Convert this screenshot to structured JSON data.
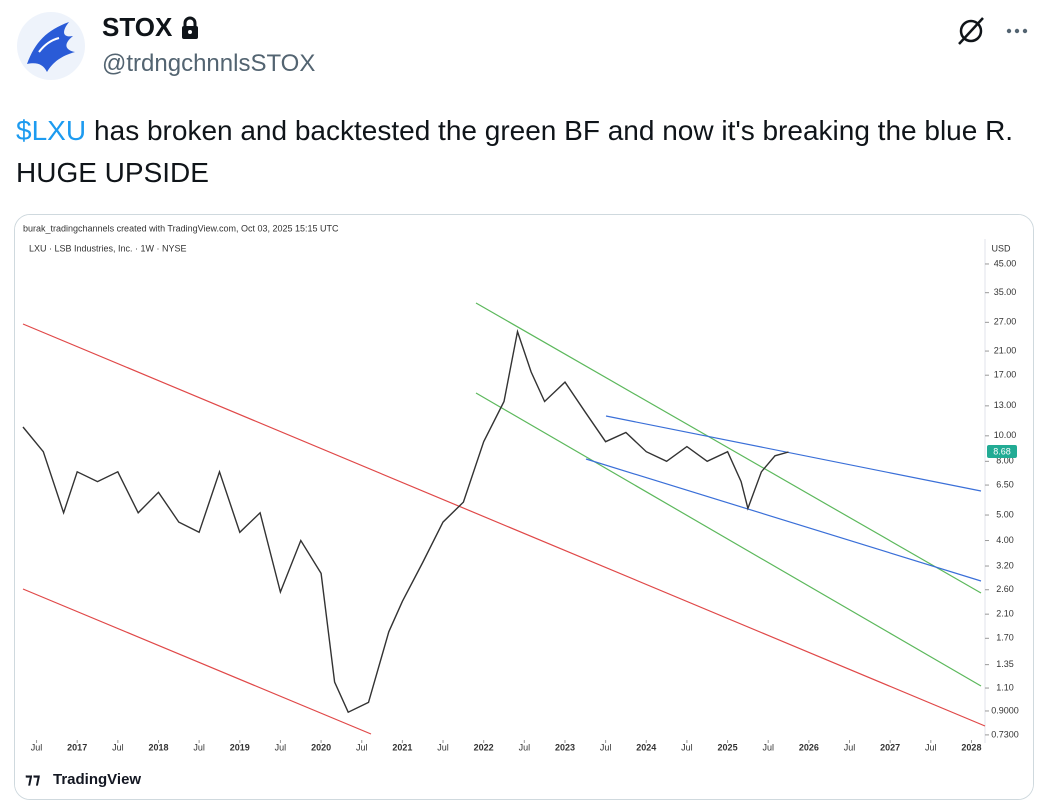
{
  "tweet": {
    "name": "STOX",
    "handle": "@trdngchnnlsSTOX",
    "cashtag": "$LXU",
    "text": "has broken and backtested the green BF and now it's breaking the blue R. HUGE UPSIDE"
  },
  "chart_data": {
    "type": "line",
    "credit": "burak_tradingchannels created with TradingView.com, Oct 03, 2025 15:15 UTC",
    "title": "LXU · LSB Industries, Inc. · 1W · NYSE",
    "y_label": "USD",
    "brand": "TradingView",
    "color": "#333333",
    "log_y": true,
    "x": [
      "2016-05",
      "2016-08",
      "2016-11",
      "2017-01",
      "2017-04",
      "2017-07",
      "2017-10",
      "2018-01",
      "2018-04",
      "2018-07",
      "2018-10",
      "2019-01",
      "2019-04",
      "2019-07",
      "2019-10",
      "2020-01",
      "2020-03",
      "2020-05",
      "2020-08",
      "2020-11",
      "2021-01",
      "2021-04",
      "2021-07",
      "2021-10",
      "2022-01",
      "2022-04",
      "2022-06",
      "2022-08",
      "2022-10",
      "2023-01",
      "2023-04",
      "2023-07",
      "2023-10",
      "2024-01",
      "2024-04",
      "2024-07",
      "2024-10",
      "2025-01",
      "2025-03",
      "2025-04",
      "2025-06",
      "2025-08",
      "2025-10"
    ],
    "values": [
      10.8,
      8.7,
      5.1,
      7.3,
      6.7,
      7.3,
      5.1,
      6.1,
      4.7,
      4.3,
      7.3,
      4.3,
      5.1,
      2.55,
      4.0,
      3.0,
      1.16,
      0.89,
      0.97,
      1.8,
      2.35,
      3.3,
      4.7,
      5.6,
      9.5,
      13.5,
      24.9,
      17.5,
      13.5,
      16,
      12.3,
      9.5,
      10.3,
      8.7,
      8.0,
      9.1,
      8.0,
      8.7,
      6.7,
      5.3,
      7.3,
      8.4,
      8.68
    ],
    "xlim": [
      "2016-05",
      "2028-03"
    ],
    "xticks": [
      {
        "value": "2016-07",
        "label": "Jul"
      },
      {
        "value": "2017-01",
        "label": "2017"
      },
      {
        "value": "2017-07",
        "label": "Jul"
      },
      {
        "value": "2018-01",
        "label": "2018"
      },
      {
        "value": "2018-07",
        "label": "Jul"
      },
      {
        "value": "2019-01",
        "label": "2019"
      },
      {
        "value": "2019-07",
        "label": "Jul"
      },
      {
        "value": "2020-01",
        "label": "2020"
      },
      {
        "value": "2020-07",
        "label": "Jul"
      },
      {
        "value": "2021-01",
        "label": "2021"
      },
      {
        "value": "2021-07",
        "label": "Jul"
      },
      {
        "value": "2022-01",
        "label": "2022"
      },
      {
        "value": "2022-07",
        "label": "Jul"
      },
      {
        "value": "2023-01",
        "label": "2023"
      },
      {
        "value": "2023-07",
        "label": "Jul"
      },
      {
        "value": "2024-01",
        "label": "2024"
      },
      {
        "value": "2024-07",
        "label": "Jul"
      },
      {
        "value": "2025-01",
        "label": "2025"
      },
      {
        "value": "2025-07",
        "label": "Jul"
      },
      {
        "value": "2026-01",
        "label": "2026"
      },
      {
        "value": "2026-07",
        "label": "Jul"
      },
      {
        "value": "2027-01",
        "label": "2027"
      },
      {
        "value": "2027-07",
        "label": "Jul"
      },
      {
        "value": "2028-01",
        "label": "2028"
      }
    ],
    "ylim": [
      0.68,
      47
    ],
    "yticks": [
      {
        "value": 0.73,
        "label": "0.7300"
      },
      {
        "value": 0.9,
        "label": "0.9000"
      },
      {
        "value": 1.1,
        "label": "1.10"
      },
      {
        "value": 1.35,
        "label": "1.35"
      },
      {
        "value": 1.7,
        "label": "1.70"
      },
      {
        "value": 2.1,
        "label": "2.10"
      },
      {
        "value": 2.6,
        "label": "2.60"
      },
      {
        "value": 3.2,
        "label": "3.20"
      },
      {
        "value": 4,
        "label": "4.00"
      },
      {
        "value": 5,
        "label": "5.00"
      },
      {
        "value": 6.5,
        "label": "6.50"
      },
      {
        "value": 8,
        "label": "8.00"
      },
      {
        "value": 10,
        "label": "10.00"
      },
      {
        "value": 13,
        "label": "13.00"
      },
      {
        "value": 17,
        "label": "17.00"
      },
      {
        "value": 21,
        "label": "21.00"
      },
      {
        "value": 27,
        "label": "27.00"
      },
      {
        "value": 35,
        "label": "35.00"
      },
      {
        "value": 45,
        "label": "45.00"
      }
    ]
  }
}
